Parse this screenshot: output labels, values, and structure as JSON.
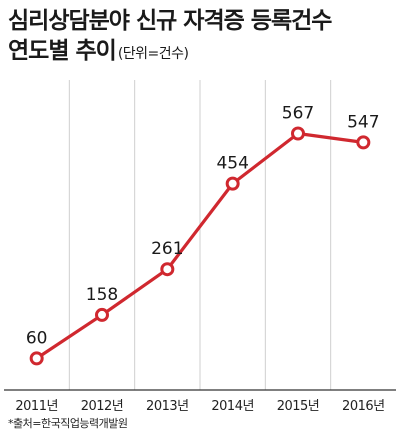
{
  "header": {
    "title_line1": "심리상담분야 신규 자격증 등록건수",
    "title_line2": "연도별 추이",
    "unit": "(단위=건수)"
  },
  "source": "*출처=한국직업능력개발원",
  "chart_data": {
    "type": "line",
    "title": "심리상담분야 신규 자격증 등록건수 연도별 추이",
    "unit": "(단위=건수)",
    "categories": [
      "2011년",
      "2012년",
      "2013년",
      "2014년",
      "2015년",
      "2016년"
    ],
    "series": [
      {
        "values": [
          60,
          158,
          261,
          454,
          567,
          547
        ]
      }
    ],
    "data_labels": [
      "60",
      "158",
      "261",
      "454",
      "567",
      "547"
    ],
    "ylim": [
      0,
      620
    ],
    "grid": "vertical",
    "colors": {
      "line": "#d0282f",
      "marker_fill": "#ffffff",
      "grid": "#cfcfcf",
      "axis": "#333333"
    }
  }
}
